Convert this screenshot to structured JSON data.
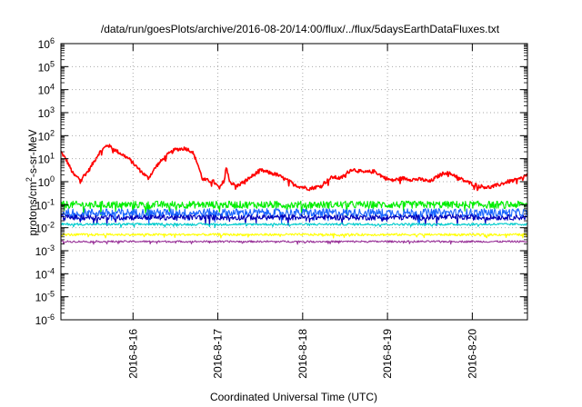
{
  "chart_data": {
    "type": "line",
    "title": "/data/run/goesPlots/archive/2016-08-20/14:00/flux/../flux/5daysEarthDataFluxes.txt",
    "xlabel": "Coordinated Universal Time (UTC)",
    "ylabel": {
      "base": "protons/cm",
      "sup": "2",
      "rest": "-s-sr-MeV"
    },
    "y_scale": "log",
    "ylim_exponents": [
      -6,
      6
    ],
    "y_tick_labels": [
      {
        "base": "10",
        "exp": "-6"
      },
      {
        "base": "10",
        "exp": "-5"
      },
      {
        "base": "10",
        "exp": "-4"
      },
      {
        "base": "10",
        "exp": "-3"
      },
      {
        "base": "10",
        "exp": "-2"
      },
      {
        "base": "10",
        "exp": "-1"
      },
      {
        "base": "10",
        "exp": "0"
      },
      {
        "base": "10",
        "exp": "1"
      },
      {
        "base": "10",
        "exp": "2"
      },
      {
        "base": "10",
        "exp": "3"
      },
      {
        "base": "10",
        "exp": "4"
      },
      {
        "base": "10",
        "exp": "5"
      },
      {
        "base": "10",
        "exp": "6"
      }
    ],
    "xlim_days": [
      15.15,
      20.65
    ],
    "x_ticks": [
      {
        "day": 16,
        "label": "2016-8-16"
      },
      {
        "day": 17,
        "label": "2016-8-17"
      },
      {
        "day": 18,
        "label": "2016-8-18"
      },
      {
        "day": 19,
        "label": "2016-8-19"
      },
      {
        "day": 20,
        "label": "2016-8-20"
      }
    ],
    "grid": true,
    "series": [
      {
        "color": "#ff0000",
        "noise": 0.08,
        "points": [
          [
            15.15,
            1.3
          ],
          [
            15.22,
            0.9
          ],
          [
            15.3,
            0.3
          ],
          [
            15.38,
            0.1
          ],
          [
            15.48,
            0.5
          ],
          [
            15.6,
            1.25
          ],
          [
            15.7,
            1.6
          ],
          [
            15.8,
            1.35
          ],
          [
            15.95,
            1.0
          ],
          [
            16.08,
            0.5
          ],
          [
            16.18,
            0.15
          ],
          [
            16.28,
            0.7
          ],
          [
            16.4,
            1.15
          ],
          [
            16.5,
            1.4
          ],
          [
            16.62,
            1.45
          ],
          [
            16.7,
            1.3
          ],
          [
            16.76,
            0.8
          ],
          [
            16.82,
            0.1
          ],
          [
            16.95,
            0.0
          ],
          [
            17.02,
            -0.3
          ],
          [
            17.08,
            0.1
          ],
          [
            17.1,
            0.8
          ],
          [
            17.14,
            0.0
          ],
          [
            17.22,
            -0.2
          ],
          [
            17.35,
            0.1
          ],
          [
            17.5,
            0.5
          ],
          [
            17.7,
            0.3
          ],
          [
            17.82,
            0.05
          ],
          [
            17.95,
            -0.2
          ],
          [
            18.08,
            -0.3
          ],
          [
            18.2,
            -0.2
          ],
          [
            18.35,
            0.2
          ],
          [
            18.45,
            0.15
          ],
          [
            18.58,
            0.55
          ],
          [
            18.72,
            0.4
          ],
          [
            18.85,
            0.45
          ],
          [
            18.95,
            0.2
          ],
          [
            19.05,
            0.05
          ],
          [
            19.18,
            0.15
          ],
          [
            19.28,
            0.1
          ],
          [
            19.4,
            0.1
          ],
          [
            19.5,
            0.0
          ],
          [
            19.6,
            0.25
          ],
          [
            19.68,
            0.4
          ],
          [
            19.78,
            0.3
          ],
          [
            19.9,
            0.05
          ],
          [
            20.0,
            -0.1
          ],
          [
            20.1,
            -0.2
          ],
          [
            20.2,
            -0.25
          ],
          [
            20.3,
            -0.15
          ],
          [
            20.42,
            0.0
          ],
          [
            20.55,
            0.1
          ],
          [
            20.65,
            0.3
          ]
        ]
      },
      {
        "color": "#00ee00",
        "noise": 0.16,
        "points": [
          [
            15.15,
            -1.0
          ],
          [
            20.65,
            -1.0
          ]
        ]
      },
      {
        "color": "#1a66ff",
        "noise": 0.18,
        "points": [
          [
            15.15,
            -1.35
          ],
          [
            20.65,
            -1.35
          ]
        ]
      },
      {
        "color": "#0000bb",
        "noise": 0.12,
        "points": [
          [
            15.15,
            -1.55
          ],
          [
            20.65,
            -1.55
          ]
        ]
      },
      {
        "color": "#00cccc",
        "noise": 0.05,
        "points": [
          [
            15.15,
            -1.85
          ],
          [
            20.65,
            -1.85
          ]
        ]
      },
      {
        "color": "#ffff00",
        "noise": 0.05,
        "points": [
          [
            15.15,
            -2.3
          ],
          [
            20.65,
            -2.3
          ]
        ]
      },
      {
        "color": "#993399",
        "noise": 0.04,
        "points": [
          [
            15.15,
            -2.6
          ],
          [
            20.65,
            -2.6
          ]
        ]
      }
    ]
  }
}
